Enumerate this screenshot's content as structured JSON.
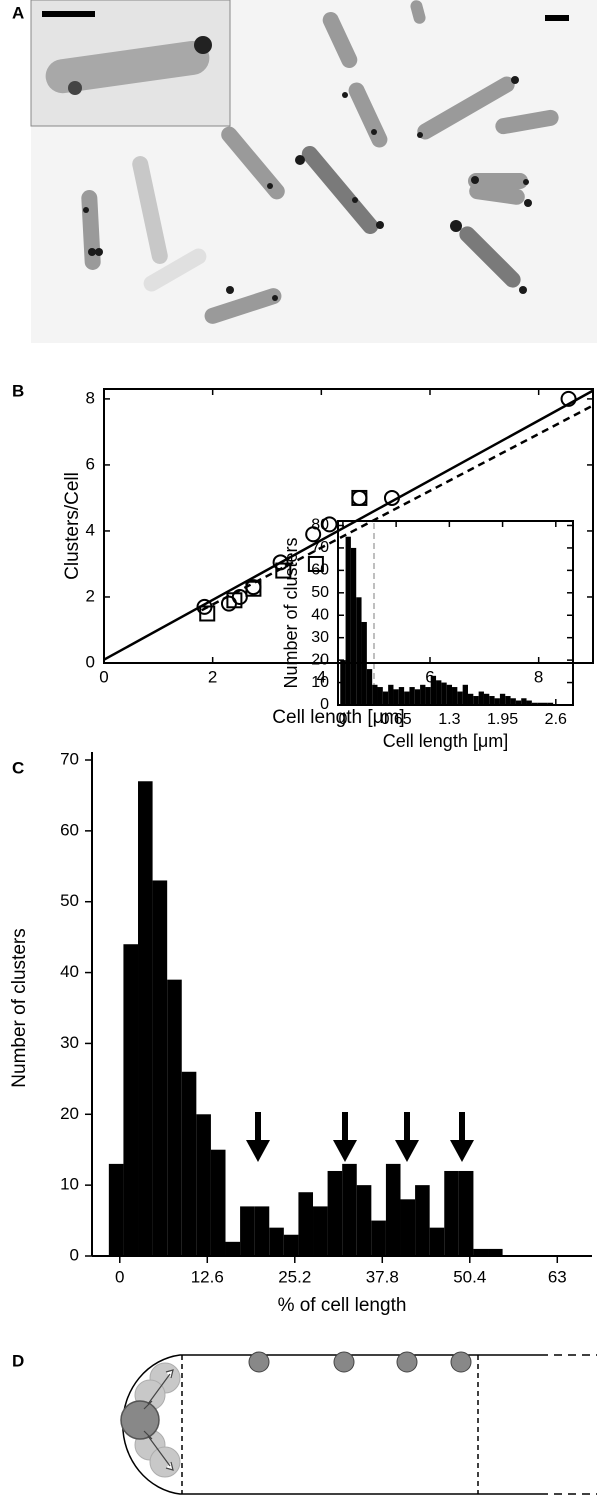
{
  "panel_labels": [
    "A",
    "B",
    "C",
    "D"
  ],
  "chart_data": [
    {
      "type": "scatter",
      "x_label": "Cell length [μm]",
      "y_label": "Clusters/Cell",
      "xlim": [
        0,
        9
      ],
      "ylim": [
        0,
        8.3
      ],
      "xticks": [
        0,
        2,
        4,
        6,
        8
      ],
      "yticks": [
        0,
        2,
        4,
        6,
        8
      ],
      "series": [
        {
          "marker": "circle",
          "color": "#000000",
          "x": [
            1.85,
            2.3,
            2.5,
            2.75,
            3.25,
            3.85,
            4.15,
            4.7,
            5.3,
            8.55
          ],
          "values": [
            1.7,
            1.8,
            2.0,
            2.3,
            3.05,
            3.9,
            4.2,
            5.0,
            5.0,
            8.0
          ]
        },
        {
          "marker": "square",
          "color": "#000000",
          "x": [
            1.9,
            2.4,
            2.75,
            3.3,
            3.9,
            4.7
          ],
          "values": [
            1.5,
            1.9,
            2.25,
            2.8,
            3.0,
            5.0
          ]
        },
        {
          "type": "line",
          "style": "solid",
          "color": "#000000",
          "x": [
            0,
            9
          ],
          "values": [
            0.1,
            8.25
          ]
        },
        {
          "type": "line",
          "style": "dashed",
          "color": "#000000",
          "x": [
            1.8,
            9
          ],
          "values": [
            1.6,
            7.8
          ]
        }
      ]
    },
    {
      "type": "histogram",
      "x_label": "% of cell length",
      "y_label": "Number of clusters",
      "color": "#000000",
      "xlim": [
        -4,
        68
      ],
      "ylim": [
        0,
        70
      ],
      "xticks": [
        0,
        12.6,
        25.2,
        37.8,
        50.4,
        63
      ],
      "yticks": [
        0,
        10,
        20,
        30,
        40,
        50,
        60,
        70
      ],
      "bins": [
        -1.575,
        0.525,
        2.625,
        4.725,
        6.825,
        8.925,
        11.025,
        13.125,
        15.225,
        17.325,
        19.425,
        21.525,
        23.625,
        25.725,
        27.825,
        29.925,
        32.025,
        34.125,
        36.225,
        38.325,
        40.425,
        42.525,
        44.625,
        46.725,
        48.825,
        50.925,
        53.025,
        55.125
      ],
      "values": [
        13,
        44,
        67,
        53,
        39,
        26,
        20,
        15,
        2,
        7,
        7,
        4,
        3,
        9,
        7,
        12,
        13,
        10,
        5,
        13,
        8,
        10,
        4,
        12,
        12,
        1,
        1
      ]
    },
    {
      "type": "histogram",
      "x_label": "Cell length [μm]",
      "y_label": "Number of clusters",
      "color": "#000000",
      "xlim": [
        -0.06,
        2.81
      ],
      "ylim": [
        0,
        82
      ],
      "xticks": [
        0,
        0.65,
        1.3,
        1.95,
        2.6
      ],
      "yticks": [
        0,
        10,
        20,
        30,
        40,
        50,
        60,
        70,
        80
      ],
      "bins": [
        -0.0325,
        0.0325,
        0.0975,
        0.1625,
        0.2275,
        0.2925,
        0.3575,
        0.4225,
        0.4875,
        0.5525,
        0.6175,
        0.6825,
        0.7475,
        0.8125,
        0.8775,
        0.9425,
        1.0075,
        1.0725,
        1.1375,
        1.2025,
        1.2675,
        1.3325,
        1.3975,
        1.4625,
        1.5275,
        1.5925,
        1.6575,
        1.7225,
        1.7875,
        1.8525,
        1.9175,
        1.9825,
        2.0475,
        2.1125,
        2.1775,
        2.2425,
        2.3075,
        2.3725,
        2.4375,
        2.5025,
        2.5675
      ],
      "values": [
        20,
        75,
        70,
        48,
        37,
        16,
        9,
        8,
        6,
        9,
        7,
        8,
        6,
        8,
        7,
        9,
        8,
        13,
        11,
        10,
        9,
        8,
        6,
        9,
        5,
        4,
        6,
        5,
        4,
        3,
        5,
        4,
        3,
        2,
        3,
        2,
        1,
        1,
        1,
        1
      ]
    }
  ]
}
